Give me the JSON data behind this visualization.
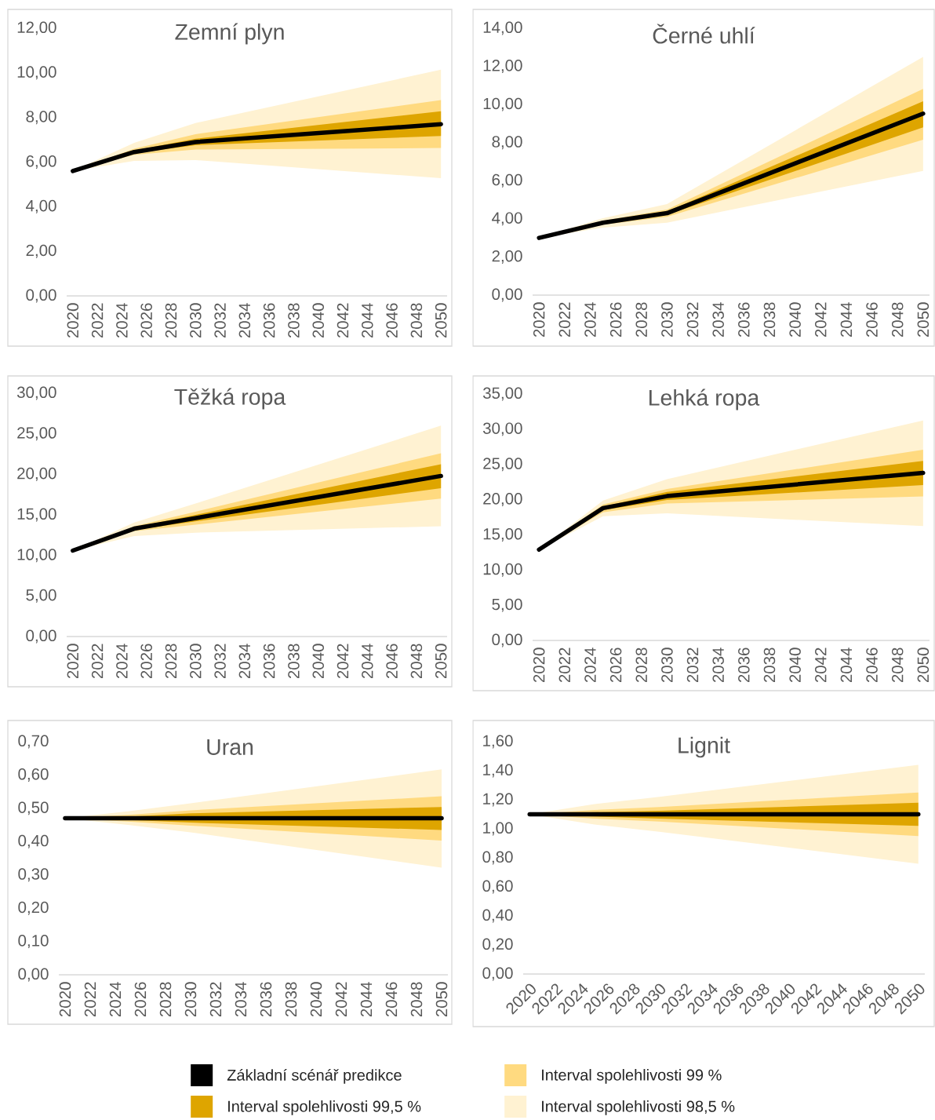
{
  "chart_data": [
    {
      "type": "line",
      "title": "Zemní plyn",
      "x": [
        2020,
        2025,
        2030,
        2050
      ],
      "xlim": [
        2019.5,
        2050.5
      ],
      "xticks": [
        2020,
        2022,
        2024,
        2026,
        2028,
        2030,
        2032,
        2034,
        2036,
        2038,
        2040,
        2042,
        2044,
        2046,
        2048,
        2050
      ],
      "ylim": [
        0,
        12
      ],
      "yticks": [
        {
          "value": 0,
          "label": "0,00"
        },
        {
          "value": 2,
          "label": "2,00"
        },
        {
          "value": 4,
          "label": "4,00"
        },
        {
          "value": 6,
          "label": "6,00"
        },
        {
          "value": 8,
          "label": "8,00"
        },
        {
          "value": 10,
          "label": "10,00"
        },
        {
          "value": 12,
          "label": "12,00"
        }
      ],
      "marker": "none",
      "series": [
        {
          "color": "#000000",
          "values": [
            5.6,
            6.45,
            6.9,
            7.7
          ]
        },
        {
          "type": "area",
          "color": "#dea500",
          "values": [
            null,
            null,
            null,
            null
          ],
          "lower": [
            5.6,
            6.4,
            6.76,
            7.17
          ],
          "upper": [
            5.6,
            6.52,
            7.05,
            8.28
          ]
        },
        {
          "type": "area",
          "color": "#ffda80",
          "values": [
            null,
            null,
            null,
            null
          ],
          "lower": [
            5.6,
            6.33,
            6.56,
            6.63
          ],
          "upper": [
            5.6,
            6.6,
            7.25,
            8.78
          ]
        },
        {
          "type": "area",
          "color": "#fff2d2",
          "values": [
            null,
            null,
            null,
            null
          ],
          "lower": [
            5.6,
            6.05,
            6.09,
            5.28
          ],
          "upper": [
            5.6,
            6.86,
            7.75,
            10.14
          ]
        }
      ]
    },
    {
      "type": "line",
      "title": "Černé uhlí",
      "x": [
        2020,
        2025,
        2030,
        2050
      ],
      "xlim": [
        2019.5,
        2050.5
      ],
      "xticks": [
        2020,
        2022,
        2024,
        2026,
        2028,
        2030,
        2032,
        2034,
        2036,
        2038,
        2040,
        2042,
        2044,
        2046,
        2048,
        2050
      ],
      "ylim": [
        0,
        14
      ],
      "yticks": [
        {
          "value": 0,
          "label": "0,00"
        },
        {
          "value": 2,
          "label": "2,00"
        },
        {
          "value": 4,
          "label": "4,00"
        },
        {
          "value": 6,
          "label": "6,00"
        },
        {
          "value": 8,
          "label": "8,00"
        },
        {
          "value": 10,
          "label": "10,00"
        },
        {
          "value": 12,
          "label": "12,00"
        },
        {
          "value": 14,
          "label": "14,00"
        }
      ],
      "marker": "none",
      "series": [
        {
          "color": "#000000",
          "values": [
            3.0,
            3.8,
            4.3,
            9.52
          ]
        },
        {
          "type": "area",
          "color": "#dea500",
          "values": [
            null,
            null,
            null,
            null
          ],
          "lower": [
            3.0,
            3.75,
            4.21,
            8.8
          ],
          "upper": [
            3.0,
            3.85,
            4.39,
            10.17
          ]
        },
        {
          "type": "area",
          "color": "#ffda80",
          "values": [
            null,
            null,
            null,
            null
          ],
          "lower": [
            3.0,
            3.7,
            4.11,
            8.15
          ],
          "upper": [
            3.0,
            3.9,
            4.49,
            10.82
          ]
        },
        {
          "type": "area",
          "color": "#fff2d2",
          "values": [
            null,
            null,
            null,
            null
          ],
          "lower": [
            3.0,
            3.54,
            3.8,
            6.52
          ],
          "upper": [
            3.0,
            4.04,
            4.78,
            12.5
          ]
        }
      ]
    },
    {
      "type": "line",
      "title": "Těžká ropa",
      "x": [
        2020,
        2025,
        2030,
        2050
      ],
      "xlim": [
        2019.5,
        2050.5
      ],
      "xticks": [
        2020,
        2022,
        2024,
        2026,
        2028,
        2030,
        2032,
        2034,
        2036,
        2038,
        2040,
        2042,
        2044,
        2046,
        2048,
        2050
      ],
      "ylim": [
        0,
        30
      ],
      "yticks": [
        {
          "value": 0,
          "label": "0,00"
        },
        {
          "value": 5,
          "label": "5,00"
        },
        {
          "value": 10,
          "label": "10,00"
        },
        {
          "value": 15,
          "label": "15,00"
        },
        {
          "value": 20,
          "label": "20,00"
        },
        {
          "value": 25,
          "label": "25,00"
        },
        {
          "value": 30,
          "label": "30,00"
        }
      ],
      "marker": "none",
      "series": [
        {
          "color": "#000000",
          "values": [
            10.6,
            13.3,
            14.6,
            19.8
          ]
        },
        {
          "type": "area",
          "color": "#dea500",
          "values": [
            null,
            null,
            null,
            null
          ],
          "lower": [
            10.6,
            13.15,
            14.2,
            18.3
          ],
          "upper": [
            10.6,
            13.45,
            15.0,
            21.25
          ]
        },
        {
          "type": "area",
          "color": "#ffda80",
          "values": [
            null,
            null,
            null,
            null
          ],
          "lower": [
            10.6,
            13.0,
            13.8,
            17.0
          ],
          "upper": [
            10.6,
            13.6,
            15.4,
            22.6
          ]
        },
        {
          "type": "area",
          "color": "#fff2d2",
          "values": [
            null,
            null,
            null,
            null
          ],
          "lower": [
            10.6,
            12.4,
            12.8,
            13.6
          ],
          "upper": [
            10.6,
            14.05,
            16.4,
            26.0
          ]
        }
      ]
    },
    {
      "type": "line",
      "title": "Lehká ropa",
      "x": [
        2020,
        2025,
        2030,
        2050
      ],
      "xlim": [
        2019.5,
        2050.5
      ],
      "xticks": [
        2020,
        2022,
        2024,
        2026,
        2028,
        2030,
        2032,
        2034,
        2036,
        2038,
        2040,
        2042,
        2044,
        2046,
        2048,
        2050
      ],
      "ylim": [
        0,
        35
      ],
      "yticks": [
        {
          "value": 0,
          "label": "0,00"
        },
        {
          "value": 5,
          "label": "5,00"
        },
        {
          "value": 10,
          "label": "10,00"
        },
        {
          "value": 15,
          "label": "15,00"
        },
        {
          "value": 20,
          "label": "20,00"
        },
        {
          "value": 25,
          "label": "25,00"
        },
        {
          "value": 30,
          "label": "30,00"
        },
        {
          "value": 35,
          "label": "35,00"
        }
      ],
      "marker": "none",
      "series": [
        {
          "color": "#000000",
          "values": [
            12.9,
            18.8,
            20.5,
            23.8
          ]
        },
        {
          "type": "area",
          "color": "#dea500",
          "values": [
            null,
            null,
            null,
            null
          ],
          "lower": [
            12.9,
            18.5,
            19.95,
            22.06
          ],
          "upper": [
            12.9,
            19.0,
            21.09,
            25.5
          ]
        },
        {
          "type": "area",
          "color": "#ffda80",
          "values": [
            null,
            null,
            null,
            null
          ],
          "lower": [
            12.9,
            18.2,
            19.44,
            20.46
          ],
          "upper": [
            12.9,
            19.3,
            21.5,
            27.1
          ]
        },
        {
          "type": "area",
          "color": "#fff2d2",
          "values": [
            null,
            null,
            null,
            null
          ],
          "lower": [
            12.9,
            17.63,
            18.05,
            16.24
          ],
          "upper": [
            12.9,
            19.86,
            22.9,
            31.25
          ]
        }
      ]
    },
    {
      "type": "line",
      "title": "Uran",
      "x": [
        2020,
        2025,
        2030,
        2050
      ],
      "xlim": [
        2019.5,
        2050.5
      ],
      "xticks": [
        2020,
        2022,
        2024,
        2026,
        2028,
        2030,
        2032,
        2034,
        2036,
        2038,
        2040,
        2042,
        2044,
        2046,
        2048,
        2050
      ],
      "ylim": [
        0,
        0.7
      ],
      "yticks": [
        {
          "value": 0,
          "label": "0,00"
        },
        {
          "value": 0.1,
          "label": "0,10"
        },
        {
          "value": 0.2,
          "label": "0,20"
        },
        {
          "value": 0.3,
          "label": "0,30"
        },
        {
          "value": 0.4,
          "label": "0,40"
        },
        {
          "value": 0.5,
          "label": "0,50"
        },
        {
          "value": 0.6,
          "label": "0,60"
        },
        {
          "value": 0.7,
          "label": "0,70"
        }
      ],
      "marker": "none",
      "series": [
        {
          "color": "#000000",
          "values": [
            0.47,
            0.47,
            0.47,
            0.47
          ]
        },
        {
          "type": "area",
          "color": "#dea500",
          "values": [
            null,
            null,
            null,
            null
          ],
          "lower": [
            0.47,
            0.465,
            0.457,
            0.435
          ],
          "upper": [
            0.47,
            0.475,
            0.485,
            0.504
          ]
        },
        {
          "type": "area",
          "color": "#ffda80",
          "values": [
            null,
            null,
            null,
            null
          ],
          "lower": [
            0.47,
            0.46,
            0.448,
            0.403
          ],
          "upper": [
            0.47,
            0.48,
            0.494,
            0.536
          ]
        },
        {
          "type": "area",
          "color": "#fff2d2",
          "values": [
            null,
            null,
            null,
            null
          ],
          "lower": [
            0.47,
            0.45,
            0.428,
            0.322
          ],
          "upper": [
            0.47,
            0.491,
            0.515,
            0.617
          ]
        }
      ]
    },
    {
      "type": "line",
      "title": "Lignit",
      "x": [
        2020,
        2025,
        2030,
        2050
      ],
      "xlim": [
        2019.5,
        2050.5
      ],
      "xticks": [
        2020,
        2022,
        2024,
        2026,
        2028,
        2030,
        2032,
        2034,
        2036,
        2038,
        2040,
        2042,
        2044,
        2046,
        2048,
        2050
      ],
      "ylim": [
        0,
        1.6
      ],
      "yticks": [
        {
          "value": 0,
          "label": "0,00"
        },
        {
          "value": 0.2,
          "label": "0,20"
        },
        {
          "value": 0.4,
          "label": "0,40"
        },
        {
          "value": 0.6,
          "label": "0,60"
        },
        {
          "value": 0.8,
          "label": "0,80"
        },
        {
          "value": 1.0,
          "label": "1,00"
        },
        {
          "value": 1.2,
          "label": "1,20"
        },
        {
          "value": 1.4,
          "label": "1,40"
        },
        {
          "value": 1.6,
          "label": "1,60"
        }
      ],
      "marker": "none",
      "legend": "bottom",
      "series": [
        {
          "name": "Základní scénář predikce",
          "color": "#000000",
          "values": [
            1.1,
            1.1,
            1.1,
            1.1
          ]
        },
        {
          "name": "Interval spolehlivosti 99,5 %",
          "type": "area",
          "color": "#dea500",
          "values": [
            null,
            null,
            null,
            null
          ],
          "lower": [
            1.1,
            1.085,
            1.07,
            1.02
          ],
          "upper": [
            1.1,
            1.115,
            1.125,
            1.18
          ]
        },
        {
          "name": "Interval spolehlivosti 99 %",
          "type": "area",
          "color": "#ffda80",
          "values": [
            null,
            null,
            null,
            null
          ],
          "lower": [
            1.1,
            1.07,
            1.05,
            0.95
          ],
          "upper": [
            1.1,
            1.13,
            1.15,
            1.25
          ]
        },
        {
          "name": "Interval spolehlivosti 98,5 %",
          "type": "area",
          "color": "#fff2d2",
          "values": [
            null,
            null,
            null,
            null
          ],
          "lower": [
            1.1,
            1.03,
            0.98,
            0.76
          ],
          "upper": [
            1.1,
            1.17,
            1.22,
            1.44
          ]
        }
      ]
    }
  ]
}
